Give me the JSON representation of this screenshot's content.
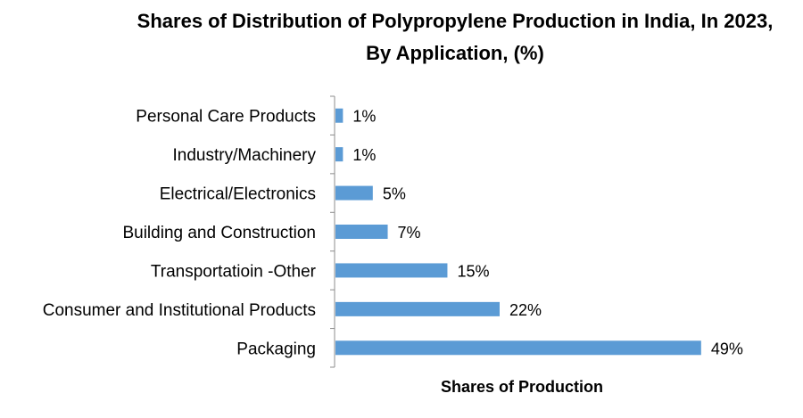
{
  "chart_data": {
    "type": "bar",
    "orientation": "horizontal",
    "title": "Shares of Distribution of Polypropylene Production in India, In 2023, By Application, (%)",
    "xlabel": "Shares of Production",
    "ylabel": "",
    "categories": [
      "Personal Care Products",
      "Industry/Machinery",
      "Electrical/Electronics",
      "Building and Construction",
      "Transportatioin -Other",
      "Consumer and Institutional Products",
      "Packaging"
    ],
    "values": [
      1,
      1,
      5,
      7,
      15,
      22,
      49
    ],
    "data_labels": [
      "1%",
      "1%",
      "5%",
      "7%",
      "15%",
      "22%",
      "49%"
    ],
    "xlim": [
      0,
      55
    ],
    "bar_color": "#5B9BD5",
    "grid": false,
    "legend": "none"
  }
}
